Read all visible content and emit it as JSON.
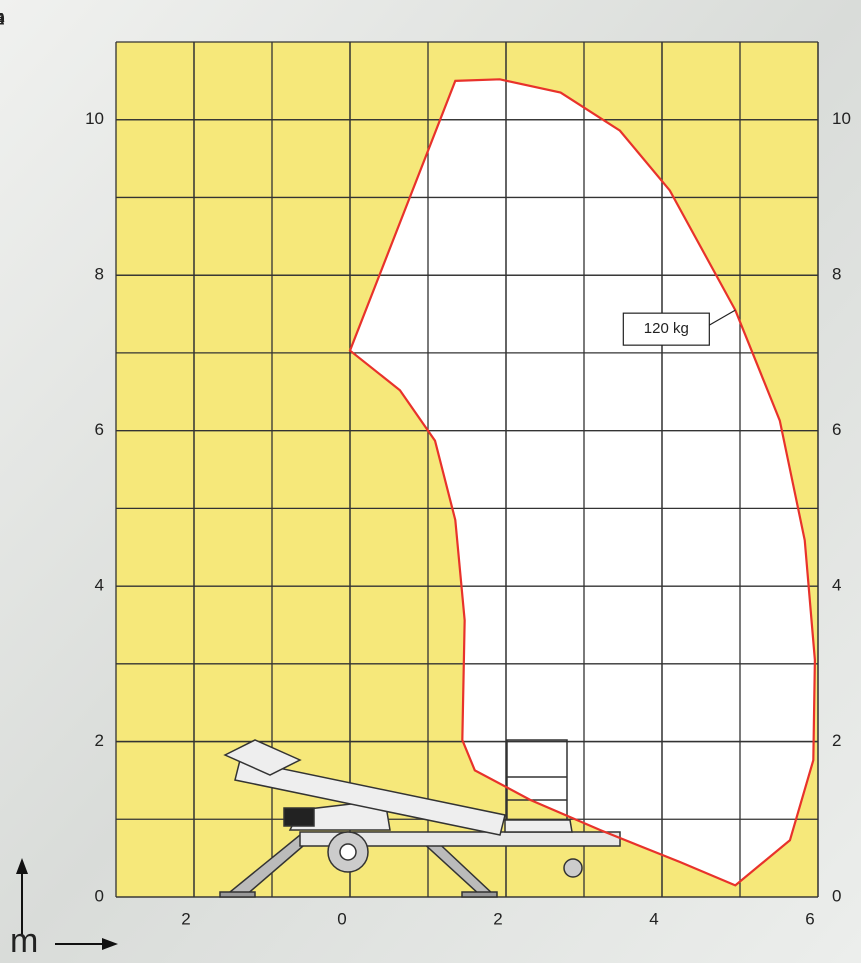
{
  "chart_data": {
    "type": "envelope",
    "series": [
      {
        "name": "120 kg",
        "color": "#e8322b",
        "x": [
          0,
          1.35,
          1.92,
          2.7,
          3.46,
          4.1,
          4.94,
          5.51,
          5.83,
          5.96,
          5.94,
          5.64,
          4.94,
          4.23,
          3.21,
          2.31,
          1.6,
          1.44,
          1.47,
          1.35,
          1.09,
          0.64
        ],
        "y": [
          7.03,
          10.5,
          10.52,
          10.35,
          9.86,
          9.09,
          7.55,
          6.13,
          4.59,
          3.05,
          1.76,
          0.73,
          0.15,
          0.45,
          0.86,
          1.25,
          1.63,
          2.02,
          3.56,
          4.85,
          5.87,
          6.52
        ]
      }
    ],
    "xlim": [
      -3,
      6
    ],
    "ylim": [
      0,
      11
    ],
    "xticks": [
      {
        "value": -2,
        "label": "2"
      },
      0,
      2,
      4,
      6
    ],
    "yticks": [
      0,
      2,
      4,
      6,
      8,
      10
    ],
    "grid": true,
    "grid_step": 1,
    "unit_label": "m"
  }
}
